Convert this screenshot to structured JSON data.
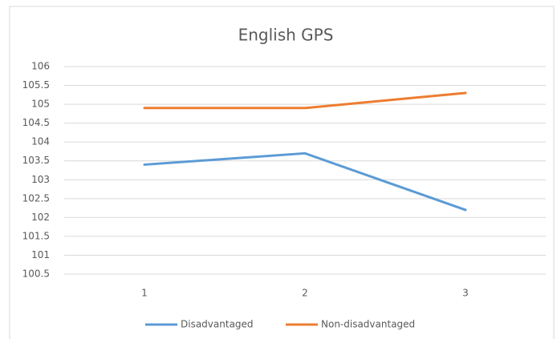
{
  "chart_data": {
    "type": "line",
    "title": "English GPS",
    "categories": [
      "1",
      "2",
      "3"
    ],
    "series": [
      {
        "name": "Disadvantaged",
        "color": "#5b9bd5",
        "values": [
          103.4,
          103.7,
          102.2
        ]
      },
      {
        "name": "Non-disadvantaged",
        "color": "#ed7d31",
        "values": [
          104.9,
          104.9,
          105.3
        ]
      }
    ],
    "ylim": [
      100.5,
      106
    ],
    "yticks": [
      100.5,
      101,
      101.5,
      102,
      102.5,
      103,
      103.5,
      104,
      104.5,
      105,
      105.5,
      106
    ],
    "grid": true,
    "legend": "bottom"
  }
}
